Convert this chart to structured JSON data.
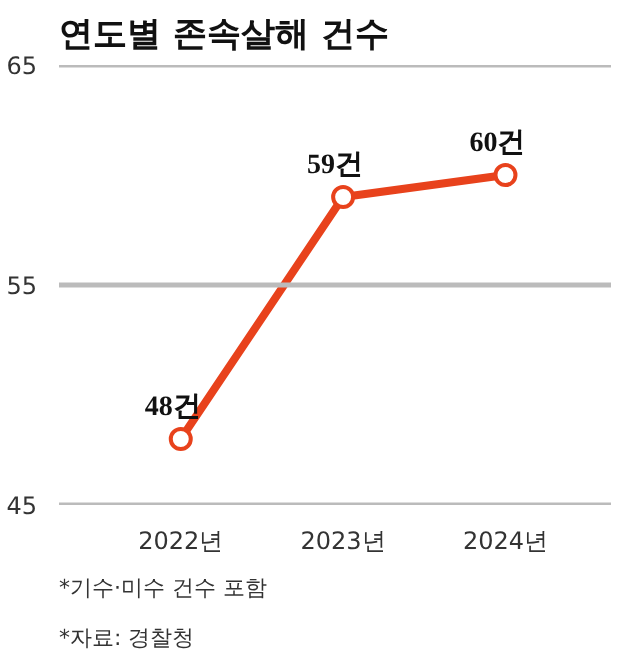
{
  "chart_data": {
    "type": "line",
    "title": "연도별 존속살해 건수",
    "categories": [
      "2022년",
      "2023년",
      "2024년"
    ],
    "series": [
      {
        "color": "#e8421c",
        "values": [
          48,
          59,
          60
        ]
      }
    ],
    "value_labels": [
      "48건",
      "59건",
      "60건"
    ],
    "ylim": [
      45,
      65
    ],
    "yticks": [
      45,
      55,
      65
    ],
    "grid": "y",
    "marker": "circle",
    "line_style": "solid",
    "annotations": [
      "*기수·미수 건수 포함",
      "*자료: 경찰청"
    ]
  }
}
